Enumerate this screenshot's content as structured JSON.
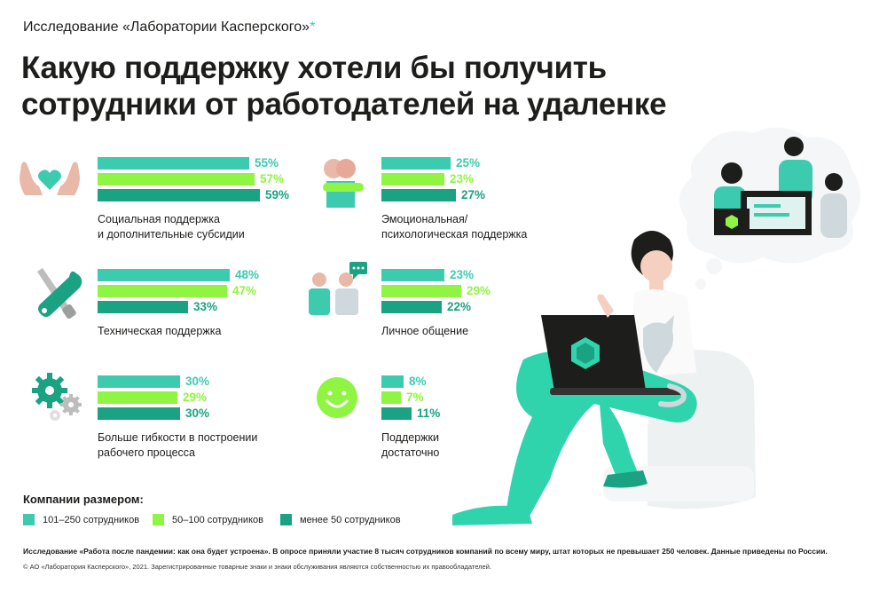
{
  "header": {
    "subtitle": "Исследование «Лаборатории Касперского»",
    "subtitle_mark": "*",
    "title_line1": "Какую поддержку хотели бы получить",
    "title_line2": "сотрудники от работодателей на удаленке"
  },
  "colors": {
    "s1": "#3dcbb0",
    "s2": "#8ff542",
    "s3": "#1aa283",
    "text": "#1d1d1b"
  },
  "chart_data": {
    "type": "bar",
    "orientation": "horizontal",
    "series_names": [
      "101–250 сотрудников",
      "50–100 сотрудников",
      "менее 50 сотрудников"
    ],
    "groups": [
      {
        "label_lines": [
          "Социальная поддержка",
          "и дополнительные субсидии"
        ],
        "icon": "hands-heart-icon",
        "values": [
          55,
          57,
          59
        ]
      },
      {
        "label_lines": [
          "Эмоциональная/",
          "психологическая поддержка"
        ],
        "icon": "hug-icon",
        "values": [
          25,
          23,
          27
        ]
      },
      {
        "label_lines": [
          "Техническая поддержка"
        ],
        "icon": "tools-icon",
        "values": [
          48,
          47,
          33
        ]
      },
      {
        "label_lines": [
          "Личное общение"
        ],
        "icon": "people-chat-icon",
        "values": [
          23,
          29,
          22
        ]
      },
      {
        "label_lines": [
          "Больше гибкости в построении",
          "рабочего процесса"
        ],
        "icon": "gears-icon",
        "values": [
          30,
          29,
          30
        ]
      },
      {
        "label_lines": [
          "Поддержки",
          "достаточно"
        ],
        "icon": "smile-icon",
        "values": [
          8,
          7,
          11
        ]
      }
    ],
    "unit": "%"
  },
  "legend": {
    "title": "Компании размером:",
    "items": [
      "101–250 сотрудников",
      "50–100 сотрудников",
      "менее 50 сотрудников"
    ]
  },
  "footer": {
    "note": "Исследование «Работа после пандемии: как она будет устроена». В опросе приняли участие 8 тысяч сотрудников компаний по всему миру, штат которых не превышает 250 человек. Данные приведены по России.",
    "copyright": "© АО «Лаборатория Касперского», 2021. Зарегистрированные товарные знаки и знаки обслуживания являются собственностью их правообладателей."
  }
}
